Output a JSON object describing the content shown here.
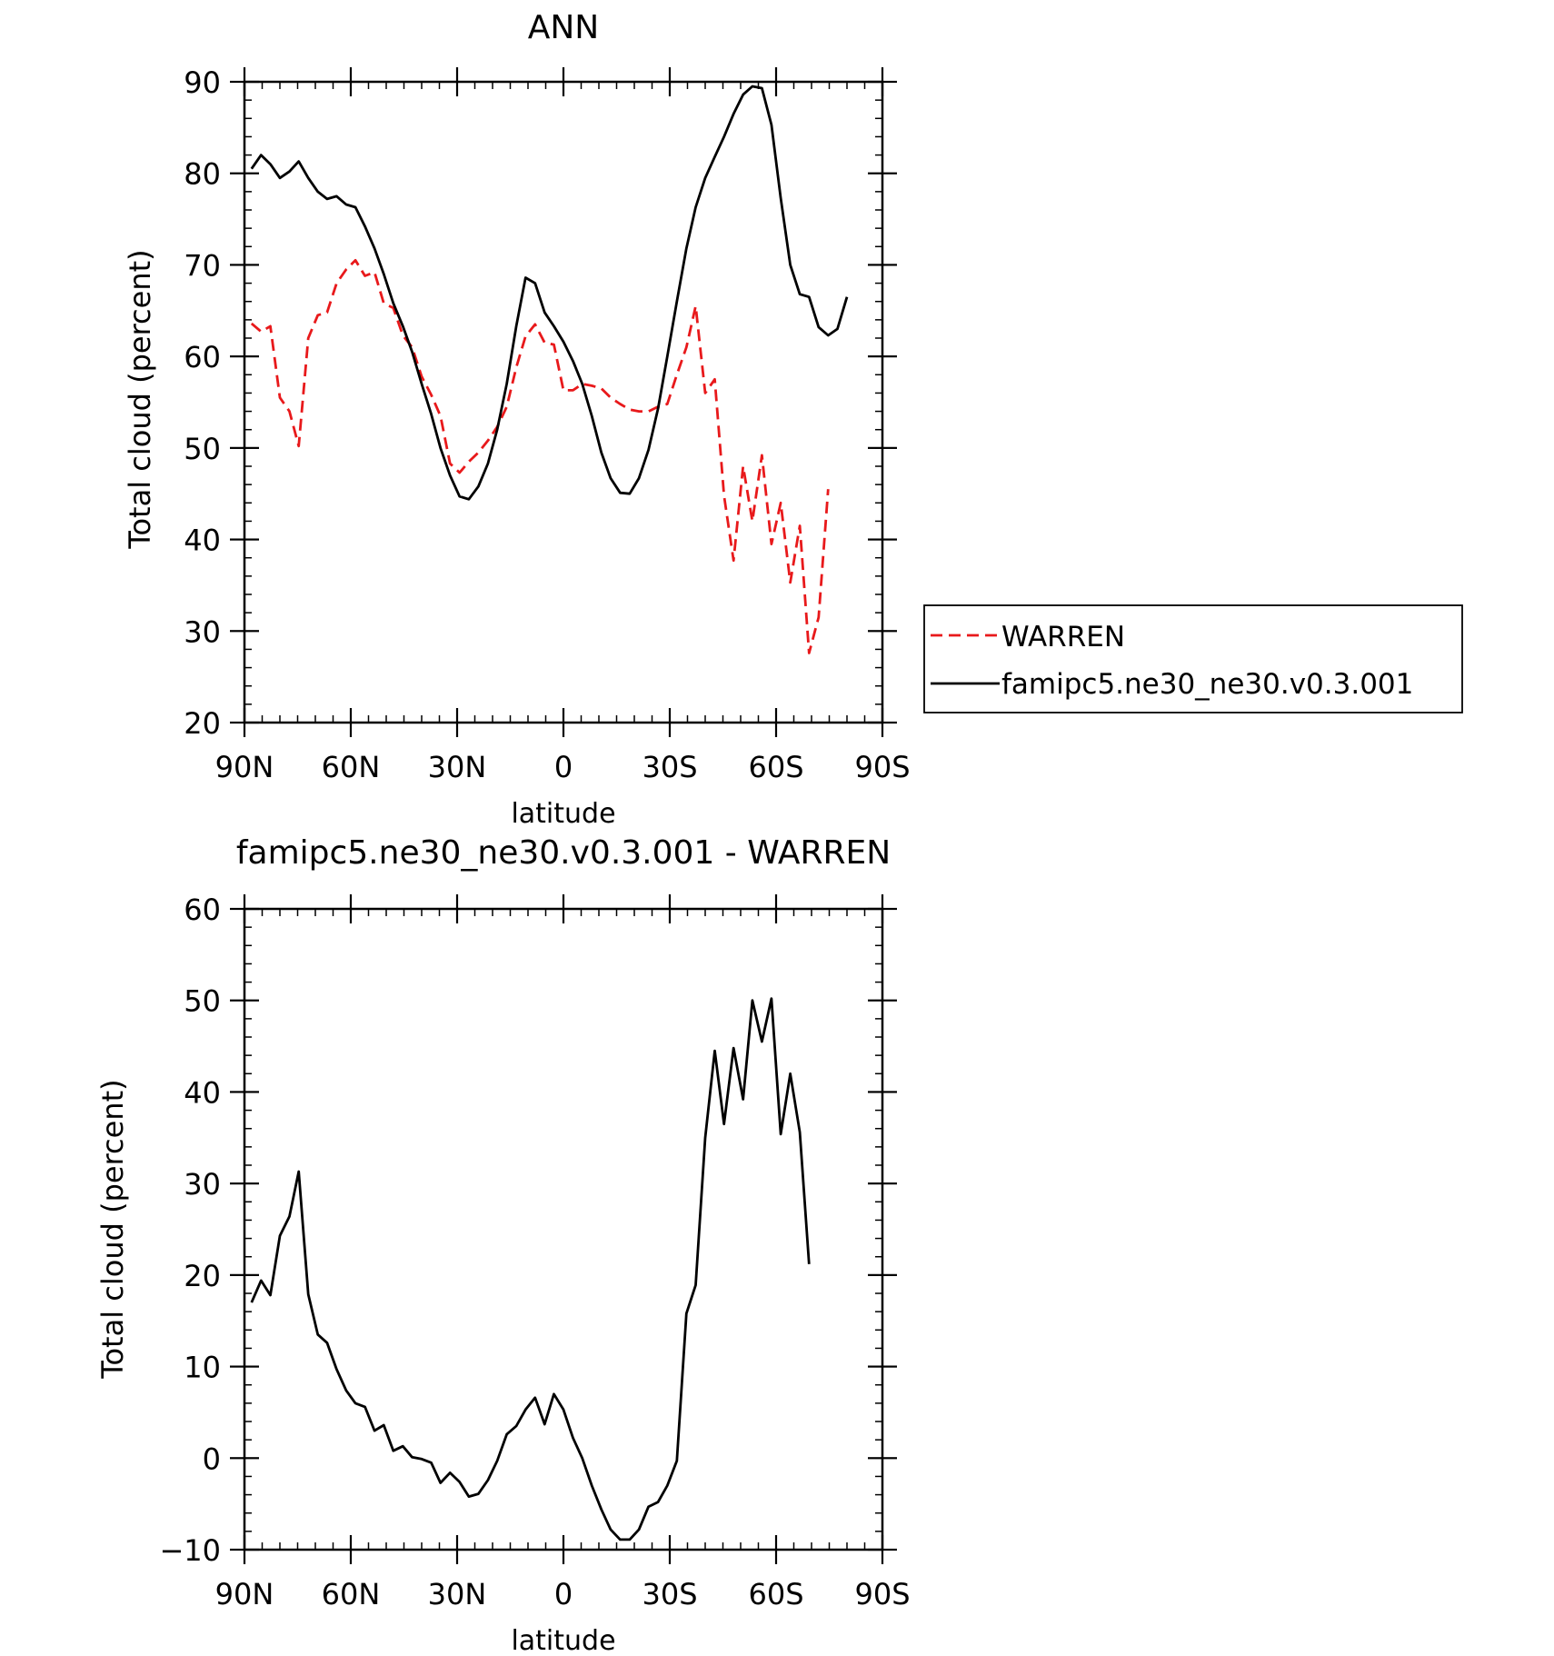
{
  "chart_data": [
    {
      "type": "line",
      "title": "ANN",
      "xlabel": "latitude",
      "ylabel": "Total cloud (percent)",
      "xlim": [
        90,
        -90
      ],
      "ylim": [
        20,
        90
      ],
      "xticks": [
        {
          "value": 90,
          "label": "90N"
        },
        {
          "value": 60,
          "label": "60N"
        },
        {
          "value": 30,
          "label": "30N"
        },
        {
          "value": 0,
          "label": "0"
        },
        {
          "value": -30,
          "label": "30S"
        },
        {
          "value": -60,
          "label": "60S"
        },
        {
          "value": -90,
          "label": "90S"
        }
      ],
      "yticks": [
        20,
        30,
        40,
        50,
        60,
        70,
        80,
        90
      ],
      "grid": false,
      "legend": "right",
      "series": [
        {
          "name": "WARREN",
          "color": "#e8191b",
          "dash": true,
          "points": [
            [
              88,
              63.6
            ],
            [
              85.3,
              62.7
            ],
            [
              82.7,
              63.3
            ],
            [
              80,
              55.5
            ],
            [
              77.3,
              54
            ],
            [
              74.7,
              50.2
            ],
            [
              72,
              62
            ],
            [
              69.3,
              64.5
            ],
            [
              66.7,
              64.8
            ],
            [
              64,
              68
            ],
            [
              61.3,
              69.5
            ],
            [
              58.7,
              70.5
            ],
            [
              56,
              68.8
            ],
            [
              53.3,
              69.2
            ],
            [
              50.7,
              65.8
            ],
            [
              48,
              65.3
            ],
            [
              45.3,
              62.3
            ],
            [
              42.7,
              61
            ],
            [
              40,
              57.8
            ],
            [
              37.3,
              55.8
            ],
            [
              34.7,
              53.5
            ],
            [
              32,
              48.3
            ],
            [
              29.3,
              47.3
            ],
            [
              26.7,
              48.5
            ],
            [
              24,
              49.5
            ],
            [
              21.3,
              50.8
            ],
            [
              18.7,
              52.3
            ],
            [
              16,
              54.5
            ],
            [
              13.3,
              58.8
            ],
            [
              10.7,
              62.2
            ],
            [
              8,
              63.5
            ],
            [
              5.3,
              61.5
            ],
            [
              2.7,
              61.3
            ],
            [
              0,
              56.3
            ],
            [
              -2.7,
              56.3
            ],
            [
              -5.3,
              57
            ],
            [
              -8,
              56.8
            ],
            [
              -10.7,
              56.5
            ],
            [
              -13.3,
              55.5
            ],
            [
              -16,
              54.8
            ],
            [
              -18.7,
              54.2
            ],
            [
              -21.3,
              54
            ],
            [
              -24,
              54
            ],
            [
              -26.7,
              54.5
            ],
            [
              -29.3,
              54.8
            ],
            [
              -32,
              58
            ],
            [
              -34.7,
              61
            ],
            [
              -37.3,
              65.5
            ],
            [
              -40,
              56
            ],
            [
              -42.7,
              57.5
            ],
            [
              -45.3,
              44.8
            ],
            [
              -48,
              37.7
            ],
            [
              -50.7,
              48
            ],
            [
              -53.3,
              42
            ],
            [
              -56,
              49.2
            ],
            [
              -58.7,
              39.5
            ],
            [
              -61.3,
              44
            ],
            [
              -64,
              35.3
            ],
            [
              -66.7,
              41.5
            ],
            [
              -69.3,
              27.6
            ],
            [
              -72,
              31.5
            ],
            [
              -74.7,
              45.5
            ]
          ]
        },
        {
          "name": "famipc5.ne30_ne30.v0.3.001",
          "color": "#000000",
          "dash": false,
          "points": [
            [
              88,
              80.5
            ],
            [
              85.3,
              82
            ],
            [
              82.7,
              81
            ],
            [
              80,
              79.5
            ],
            [
              77.3,
              80.2
            ],
            [
              74.7,
              81.3
            ],
            [
              72,
              79.5
            ],
            [
              69.3,
              78
            ],
            [
              66.7,
              77.2
            ],
            [
              64,
              77.5
            ],
            [
              61.3,
              76.6
            ],
            [
              58.7,
              76.3
            ],
            [
              56,
              74.2
            ],
            [
              53.3,
              71.8
            ],
            [
              50.7,
              69
            ],
            [
              48,
              65.8
            ],
            [
              45.3,
              63.3
            ],
            [
              42.7,
              60.5
            ],
            [
              40,
              57
            ],
            [
              37.3,
              53.7
            ],
            [
              34.7,
              50
            ],
            [
              32,
              47
            ],
            [
              29.3,
              44.7
            ],
            [
              26.7,
              44.4
            ],
            [
              24,
              45.8
            ],
            [
              21.3,
              48.3
            ],
            [
              18.7,
              52
            ],
            [
              16,
              57
            ],
            [
              13.3,
              63.3
            ],
            [
              10.7,
              68.6
            ],
            [
              8,
              68
            ],
            [
              5.3,
              64.8
            ],
            [
              2.7,
              63.3
            ],
            [
              0,
              61.6
            ],
            [
              -2.7,
              59.5
            ],
            [
              -5.3,
              57
            ],
            [
              -8,
              53.5
            ],
            [
              -10.7,
              49.5
            ],
            [
              -13.3,
              46.7
            ],
            [
              -16,
              45.1
            ],
            [
              -18.7,
              45
            ],
            [
              -21.3,
              46.7
            ],
            [
              -24,
              49.8
            ],
            [
              -26.7,
              54.3
            ],
            [
              -29.3,
              60
            ],
            [
              -32,
              66
            ],
            [
              -34.7,
              71.8
            ],
            [
              -37.3,
              76.3
            ],
            [
              -40,
              79.5
            ],
            [
              -42.7,
              81.8
            ],
            [
              -45.3,
              84
            ],
            [
              -48,
              86.5
            ],
            [
              -50.7,
              88.6
            ],
            [
              -53.3,
              89.5
            ],
            [
              -56,
              89.3
            ],
            [
              -58.7,
              85.3
            ],
            [
              -61.3,
              77.3
            ],
            [
              -64,
              70
            ],
            [
              -66.7,
              66.8
            ],
            [
              -69.3,
              66.5
            ],
            [
              -72,
              63.2
            ],
            [
              -74.7,
              62.3
            ],
            [
              -77.3,
              63
            ],
            [
              -80,
              66.5
            ]
          ]
        }
      ]
    },
    {
      "type": "line",
      "title": "famipc5.ne30_ne30.v0.3.001 - WARREN",
      "xlabel": "latitude",
      "ylabel": "Total cloud (percent)",
      "xlim": [
        90,
        -90
      ],
      "ylim": [
        -10,
        60
      ],
      "xticks": [
        {
          "value": 90,
          "label": "90N"
        },
        {
          "value": 60,
          "label": "60N"
        },
        {
          "value": 30,
          "label": "30N"
        },
        {
          "value": 0,
          "label": "0"
        },
        {
          "value": -30,
          "label": "30S"
        },
        {
          "value": -60,
          "label": "60S"
        },
        {
          "value": -90,
          "label": "90S"
        }
      ],
      "yticks": [
        -10,
        0,
        10,
        20,
        30,
        40,
        50,
        60
      ],
      "grid": false,
      "series": [
        {
          "color": "#000000",
          "dash": false,
          "points": [
            [
              88,
              17
            ],
            [
              85.3,
              19.4
            ],
            [
              82.7,
              17.8
            ],
            [
              80,
              24.3
            ],
            [
              77.3,
              26.4
            ],
            [
              74.7,
              31.3
            ],
            [
              72,
              17.9
            ],
            [
              69.3,
              13.5
            ],
            [
              66.7,
              12.6
            ],
            [
              64,
              9.7
            ],
            [
              61.3,
              7.4
            ],
            [
              58.7,
              6
            ],
            [
              56,
              5.6
            ],
            [
              53.3,
              3
            ],
            [
              50.7,
              3.6
            ],
            [
              48,
              0.8
            ],
            [
              45.3,
              1.3
            ],
            [
              42.7,
              0.1
            ],
            [
              40,
              -0.1
            ],
            [
              37.3,
              -0.5
            ],
            [
              34.7,
              -2.7
            ],
            [
              32,
              -1.6
            ],
            [
              29.3,
              -2.6
            ],
            [
              26.7,
              -4.2
            ],
            [
              24,
              -3.9
            ],
            [
              21.3,
              -2.4
            ],
            [
              18.7,
              -0.3
            ],
            [
              16,
              2.6
            ],
            [
              13.3,
              3.5
            ],
            [
              10.7,
              5.3
            ],
            [
              8,
              6.6
            ],
            [
              5.3,
              3.7
            ],
            [
              2.7,
              7
            ],
            [
              0,
              5.3
            ],
            [
              -2.7,
              2.2
            ],
            [
              -5.3,
              0
            ],
            [
              -8,
              -3
            ],
            [
              -10.7,
              -5.6
            ],
            [
              -13.3,
              -7.8
            ],
            [
              -16,
              -8.9
            ],
            [
              -18.7,
              -8.9
            ],
            [
              -21.3,
              -7.8
            ],
            [
              -24,
              -5.3
            ],
            [
              -26.7,
              -4.8
            ],
            [
              -29.3,
              -3
            ],
            [
              -32,
              -0.3
            ],
            [
              -34.7,
              15.8
            ],
            [
              -37.3,
              18.9
            ],
            [
              -40,
              35
            ],
            [
              -42.7,
              44.5
            ],
            [
              -45.3,
              36.5
            ],
            [
              -48,
              44.8
            ],
            [
              -50.7,
              39.2
            ],
            [
              -53.3,
              50
            ],
            [
              -56,
              45.5
            ],
            [
              -58.7,
              50.2
            ],
            [
              -61.3,
              35.4
            ],
            [
              -64,
              42
            ],
            [
              -66.7,
              35.6
            ],
            [
              -69.3,
              21.2
            ]
          ]
        }
      ]
    }
  ]
}
